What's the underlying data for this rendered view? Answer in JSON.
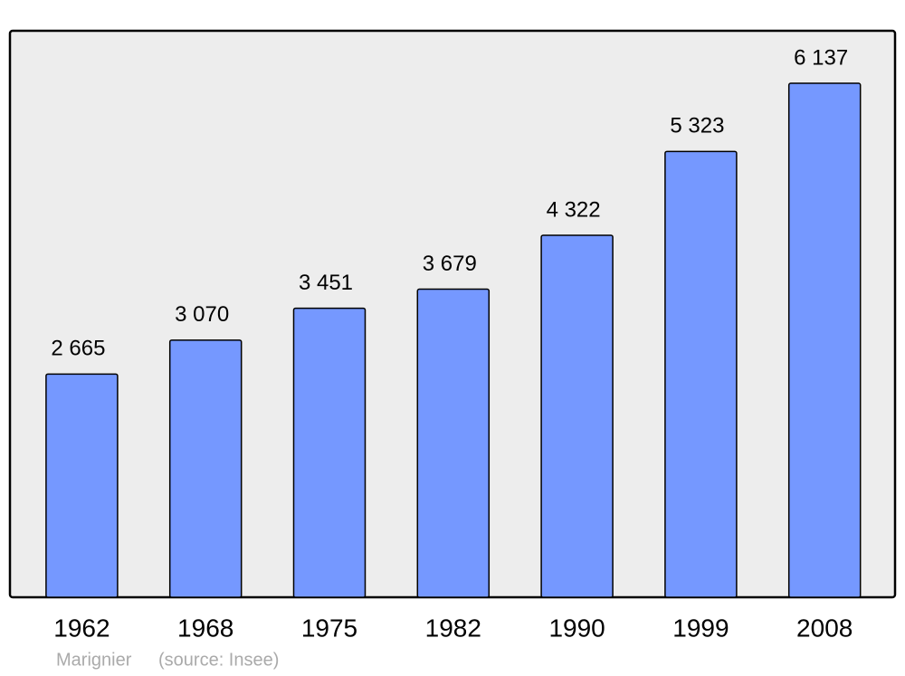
{
  "chart_data": {
    "type": "bar",
    "categories": [
      "1962",
      "1968",
      "1975",
      "1982",
      "1990",
      "1999",
      "2008"
    ],
    "values": [
      2665,
      3070,
      3451,
      3679,
      4322,
      5323,
      6137
    ],
    "value_labels": [
      "2 665",
      "3 070",
      "3 451",
      "3 679",
      "4 322",
      "5 323",
      "6 137"
    ],
    "color": "#7598ff",
    "ylim": [
      0,
      6764
    ],
    "caption": "Marignier",
    "source": "(source: Insee)"
  }
}
